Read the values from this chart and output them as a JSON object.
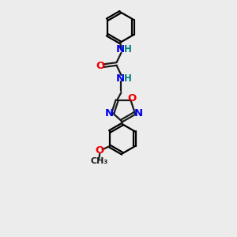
{
  "bg_color": "#ececec",
  "bond_color": "#1a1a1a",
  "N_color": "#0000ee",
  "O_color": "#ee0000",
  "NH_color": "#008080",
  "figsize": [
    3.0,
    3.0
  ],
  "dpi": 100,
  "xlim": [
    0,
    10
  ],
  "ylim": [
    0,
    13
  ]
}
